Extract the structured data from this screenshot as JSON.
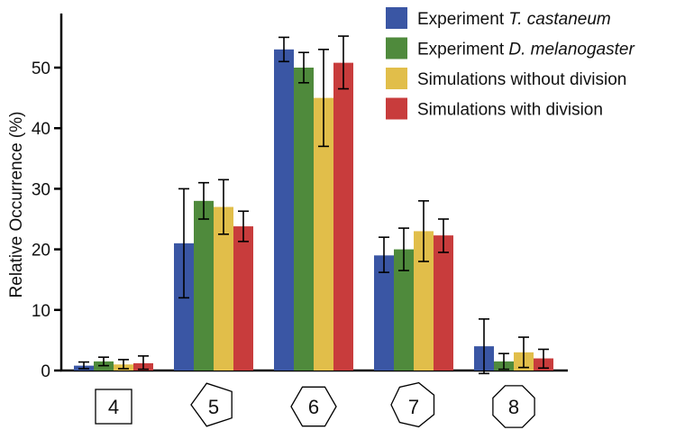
{
  "chart_data": {
    "type": "bar",
    "ylabel": "Relative Occurrence (%)",
    "ylim": [
      0,
      58
    ],
    "yticks": [
      0,
      10,
      20,
      30,
      40,
      50
    ],
    "categories": [
      "4",
      "5",
      "6",
      "7",
      "8"
    ],
    "category_shapes": [
      "square",
      "pentagon",
      "hexagon",
      "heptagon",
      "octagon"
    ],
    "series": [
      {
        "name": "Experiment T. castaneum",
        "name_plain": "Experiment ",
        "name_italic": "T. castaneum",
        "color": "#3A56A4",
        "values": [
          0.8,
          21.0,
          53.0,
          19.0,
          4.0
        ],
        "err_low": [
          0.3,
          12.0,
          51.0,
          16.2,
          -0.5
        ],
        "err_high": [
          1.4,
          30.0,
          55.0,
          22.0,
          8.5
        ]
      },
      {
        "name": "Experiment D. melanogaster",
        "name_plain": "Experiment ",
        "name_italic": "D. melanogaster",
        "color": "#4F8A3C",
        "values": [
          1.5,
          28.0,
          50.0,
          20.0,
          1.5
        ],
        "err_low": [
          0.8,
          25.0,
          47.5,
          16.5,
          0.2
        ],
        "err_high": [
          2.2,
          31.0,
          52.5,
          23.5,
          2.8
        ]
      },
      {
        "name": "Simulations without division",
        "name_plain": "Simulations without division",
        "name_italic": "",
        "color": "#E1BE4A",
        "values": [
          1.0,
          27.0,
          45.0,
          23.0,
          3.0
        ],
        "err_low": [
          0.3,
          22.5,
          37.0,
          18.0,
          0.5
        ],
        "err_high": [
          1.8,
          31.5,
          53.0,
          28.0,
          5.5
        ]
      },
      {
        "name": "Simulations with division",
        "name_plain": "Simulations with division",
        "name_italic": "",
        "color": "#C83C3C",
        "values": [
          1.2,
          23.8,
          50.8,
          22.3,
          2.0
        ],
        "err_low": [
          0.2,
          21.3,
          46.5,
          19.5,
          0.4
        ],
        "err_high": [
          2.4,
          26.3,
          55.2,
          25.0,
          3.5
        ]
      }
    ],
    "legend_position": "top-right",
    "grid": false
  }
}
